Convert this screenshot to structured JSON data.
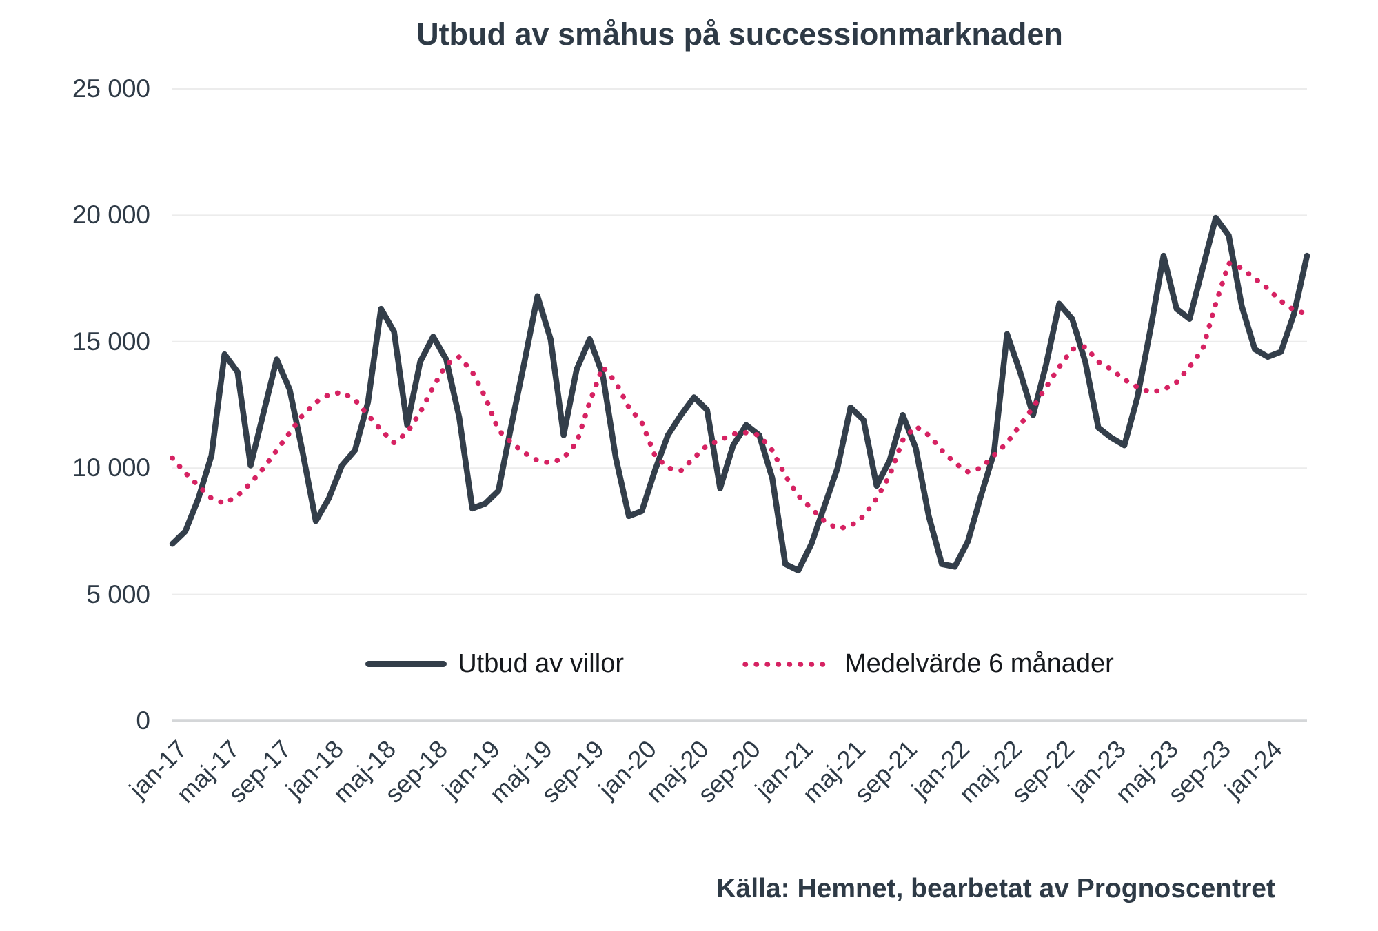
{
  "title": "Utbud av småhus på successionmarknaden",
  "source": "Källa: Hemnet, bearbetat av Prognoscentret",
  "colors": {
    "title_text": "#2e3a46",
    "tick_text": "#2e3a46",
    "legend_text": "#15181c",
    "villor_line": "#333e4a",
    "medelvarde_line": "#d62262",
    "gridline": "#ececec",
    "zero_axis": "#d4d6d8"
  },
  "legend": {
    "items": [
      {
        "label": "Utbud av villor",
        "style": "solid"
      },
      {
        "label": "Medelvärde 6 månader",
        "style": "dotted"
      }
    ]
  },
  "y_axis": {
    "ticks": [
      {
        "label": "0",
        "value": 0
      },
      {
        "label": "5 000",
        "value": 5000
      },
      {
        "label": "10 000",
        "value": 10000
      },
      {
        "label": "15 000",
        "value": 15000
      },
      {
        "label": "20 000",
        "value": 20000
      },
      {
        "label": "25 000",
        "value": 25000
      }
    ]
  },
  "chart_data": {
    "type": "line",
    "title": "Utbud av småhus på successionmarknaden",
    "ylim": [
      0,
      25000
    ],
    "grid": "horizontal",
    "legend_position": "bottom-inside",
    "tick_every": 4,
    "x_ticks": [
      "jan-17",
      "maj-17",
      "sep-17",
      "jan-18",
      "maj-18",
      "sep-18",
      "jan-19",
      "maj-19",
      "sep-19",
      "jan-20",
      "maj-20",
      "sep-20",
      "jan-21",
      "maj-21",
      "sep-21",
      "jan-22",
      "maj-22",
      "sep-22",
      "jan-23",
      "maj-23",
      "sep-23",
      "jan-24"
    ],
    "x": [
      "jan-17",
      "feb-17",
      "mar-17",
      "apr-17",
      "maj-17",
      "jun-17",
      "jul-17",
      "aug-17",
      "sep-17",
      "okt-17",
      "nov-17",
      "dec-17",
      "jan-18",
      "feb-18",
      "mar-18",
      "apr-18",
      "maj-18",
      "jun-18",
      "jul-18",
      "aug-18",
      "sep-18",
      "okt-18",
      "nov-18",
      "dec-18",
      "jan-19",
      "feb-19",
      "mar-19",
      "apr-19",
      "maj-19",
      "jun-19",
      "jul-19",
      "aug-19",
      "sep-19",
      "okt-19",
      "nov-19",
      "dec-19",
      "jan-20",
      "feb-20",
      "mar-20",
      "apr-20",
      "maj-20",
      "jun-20",
      "jul-20",
      "aug-20",
      "sep-20",
      "okt-20",
      "nov-20",
      "dec-20",
      "jan-21",
      "feb-21",
      "mar-21",
      "apr-21",
      "maj-21",
      "jun-21",
      "jul-21",
      "aug-21",
      "sep-21",
      "okt-21",
      "nov-21",
      "dec-21",
      "jan-22",
      "feb-22",
      "mar-22",
      "apr-22",
      "maj-22",
      "jun-22",
      "jul-22",
      "aug-22",
      "sep-22",
      "okt-22",
      "nov-22",
      "dec-22",
      "jan-23",
      "feb-23",
      "mar-23",
      "apr-23",
      "maj-23",
      "jun-23",
      "jul-23",
      "aug-23",
      "sep-23",
      "okt-23",
      "nov-23",
      "dec-23",
      "jan-24",
      "feb-24",
      "mar-24",
      "apr-24"
    ],
    "series": [
      {
        "name": "Utbud av villor",
        "style": "solid",
        "values": [
          7000,
          7500,
          8800,
          10500,
          14500,
          13800,
          10100,
          12200,
          14300,
          13100,
          10600,
          7900,
          8800,
          10100,
          10700,
          12600,
          16300,
          15400,
          11700,
          14200,
          15200,
          14300,
          12000,
          8400,
          8600,
          9100,
          11700,
          14200,
          16800,
          15100,
          11300,
          13900,
          15100,
          13700,
          10400,
          8100,
          8300,
          9900,
          11300,
          12100,
          12800,
          12300,
          9200,
          10900,
          11700,
          11300,
          9600,
          6200,
          5950,
          7000,
          8500,
          10000,
          12400,
          11900,
          9300,
          10300,
          12100,
          10800,
          8100,
          6200,
          6100,
          7100,
          8900,
          10600,
          15300,
          13800,
          12100,
          14100,
          16500,
          15900,
          14200,
          11600,
          11200,
          10900,
          12800,
          15500,
          18400,
          16300,
          15900,
          17900,
          19900,
          19200,
          16400,
          14700,
          14400,
          14600,
          16100,
          18400
        ]
      },
      {
        "name": "Medelvärde 6 månader",
        "style": "dotted",
        "values": [
          10400,
          9800,
          9300,
          8800,
          8600,
          8900,
          9400,
          10000,
          10700,
          11400,
          12100,
          12600,
          12900,
          13000,
          12700,
          12100,
          11500,
          11000,
          11400,
          12200,
          13200,
          14100,
          14400,
          13800,
          12800,
          11500,
          11000,
          10600,
          10300,
          10200,
          10400,
          11000,
          12600,
          14000,
          13400,
          12400,
          11800,
          10500,
          10000,
          9900,
          10400,
          10900,
          11100,
          11350,
          11400,
          11300,
          10700,
          9700,
          8900,
          8400,
          7900,
          7600,
          7700,
          8100,
          8800,
          9700,
          11100,
          11650,
          11300,
          10700,
          10200,
          9850,
          10000,
          10500,
          11000,
          11700,
          12400,
          13200,
          14000,
          14700,
          14800,
          14200,
          13900,
          13500,
          13200,
          13000,
          13100,
          13400,
          14000,
          14700,
          16500,
          18100,
          17900,
          17500,
          17100,
          16600,
          16250,
          16100
        ]
      }
    ]
  }
}
